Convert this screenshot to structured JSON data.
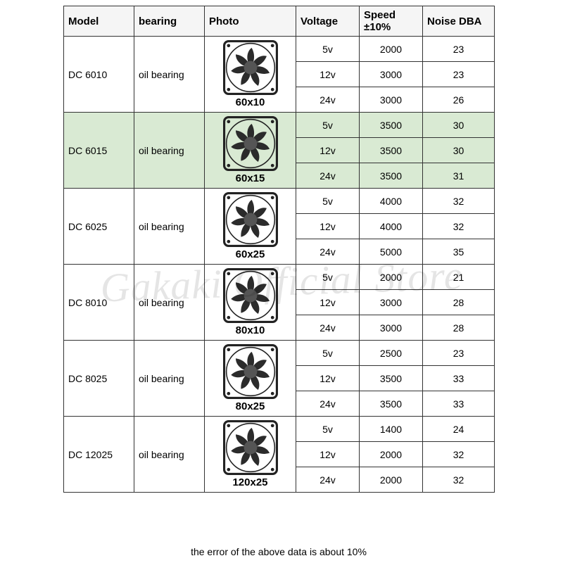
{
  "columns": [
    "Model",
    "bearing",
    "Photo",
    "Voltage",
    "Speed ±10%",
    "Noise DBA"
  ],
  "groups": [
    {
      "model": "DC 6010",
      "bearing": "oil bearing",
      "photo_label": "60x10",
      "highlighted": false,
      "rows": [
        {
          "voltage": "5v",
          "speed": "2000",
          "noise": "23"
        },
        {
          "voltage": "12v",
          "speed": "3000",
          "noise": "23"
        },
        {
          "voltage": "24v",
          "speed": "3000",
          "noise": "26"
        }
      ]
    },
    {
      "model": "DC 6015",
      "bearing": "oil bearing",
      "photo_label": "60x15",
      "highlighted": true,
      "rows": [
        {
          "voltage": "5v",
          "speed": "3500",
          "noise": "30"
        },
        {
          "voltage": "12v",
          "speed": "3500",
          "noise": "30"
        },
        {
          "voltage": "24v",
          "speed": "3500",
          "noise": "31"
        }
      ]
    },
    {
      "model": "DC 6025",
      "bearing": "oil bearing",
      "photo_label": "60x25",
      "highlighted": false,
      "rows": [
        {
          "voltage": "5v",
          "speed": "4000",
          "noise": "32"
        },
        {
          "voltage": "12v",
          "speed": "4000",
          "noise": "32"
        },
        {
          "voltage": "24v",
          "speed": "5000",
          "noise": "35"
        }
      ]
    },
    {
      "model": "DC 8010",
      "bearing": "oil bearing",
      "photo_label": "80x10",
      "highlighted": false,
      "rows": [
        {
          "voltage": "5v",
          "speed": "2000",
          "noise": "21"
        },
        {
          "voltage": "12v",
          "speed": "3000",
          "noise": "28"
        },
        {
          "voltage": "24v",
          "speed": "3000",
          "noise": "28"
        }
      ]
    },
    {
      "model": "DC 8025",
      "bearing": "oil bearing",
      "photo_label": "80x25",
      "highlighted": false,
      "rows": [
        {
          "voltage": "5v",
          "speed": "2500",
          "noise": "23"
        },
        {
          "voltage": "12v",
          "speed": "3500",
          "noise": "33"
        },
        {
          "voltage": "24v",
          "speed": "3500",
          "noise": "33"
        }
      ]
    },
    {
      "model": "DC 12025",
      "bearing": "oil bearing",
      "photo_label": "120x25",
      "highlighted": false,
      "rows": [
        {
          "voltage": "5v",
          "speed": "1400",
          "noise": "24"
        },
        {
          "voltage": "12v",
          "speed": "2000",
          "noise": "32"
        },
        {
          "voltage": "24v",
          "speed": "2000",
          "noise": "32"
        }
      ]
    }
  ],
  "footer_note": "the error of the above data is about 10%",
  "watermark": "Gakaki Official Store",
  "style": {
    "border_color": "#333333",
    "header_bg": "#f5f5f5",
    "highlight_bg": "#d9ead3",
    "font_family": "Arial, sans-serif",
    "cell_fontsize": 14,
    "header_fontsize": 15,
    "photo_label_fontsize": 15,
    "watermark_color": "rgba(0,0,0,0.10)",
    "watermark_fontsize": 58,
    "fan_frame_color": "#222222",
    "fan_blade_color": "#2b2b2b",
    "fan_hub_color": "#555555"
  }
}
